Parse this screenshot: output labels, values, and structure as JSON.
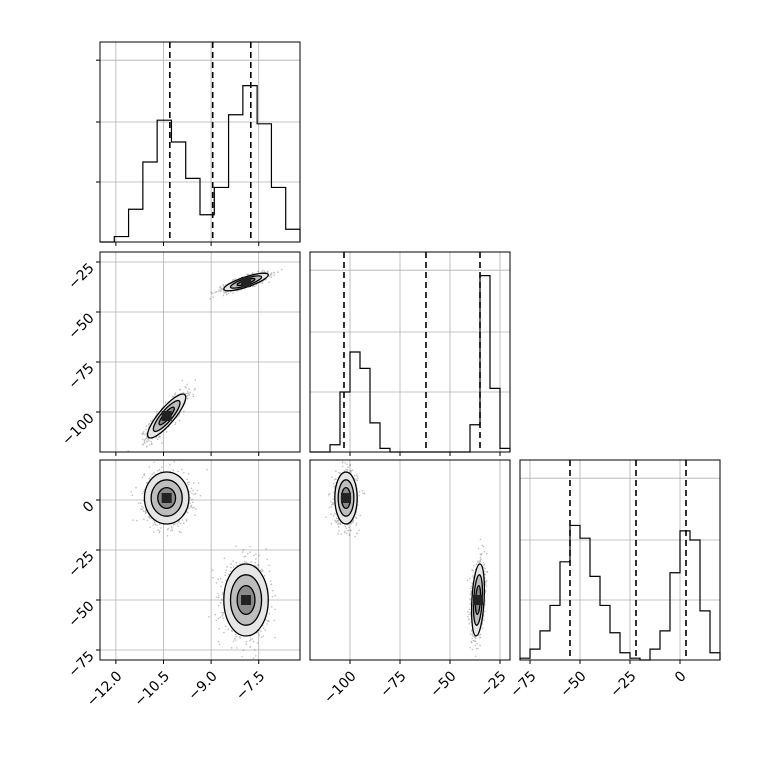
{
  "chart_data": {
    "type": "corner",
    "parameters": [
      {
        "range": [
          -12.5,
          -6.2
        ],
        "ticks": [
          -12.0,
          -10.5,
          -9.0,
          -7.5
        ],
        "tick_labels": [
          "−12.0",
          "−10.5",
          "−9.0",
          "−7.5"
        ],
        "quantiles": [
          -10.3,
          -8.95,
          -7.75
        ],
        "hist": {
          "edges": [
            -12.5,
            -12.05,
            -11.6,
            -11.15,
            -10.7,
            -10.25,
            -9.8,
            -9.35,
            -8.9,
            -8.45,
            -8.0,
            -7.55,
            -7.1,
            -6.65,
            -6.2
          ],
          "density": [
            0.0,
            0.03,
            0.18,
            0.44,
            0.67,
            0.55,
            0.35,
            0.15,
            0.3,
            0.7,
            0.86,
            0.65,
            0.3,
            0.07
          ]
        }
      },
      {
        "range": [
          -120,
          -20
        ],
        "ticks": [
          -100,
          -75,
          -50,
          -25
        ],
        "tick_labels": [
          "−100",
          "−75",
          "−50",
          "−25"
        ],
        "quantiles": [
          -103,
          -62,
          -35
        ],
        "hist": {
          "edges": [
            -120,
            -115,
            -110,
            -105,
            -100,
            -95,
            -90,
            -85,
            -80,
            -75,
            -70,
            -65,
            -60,
            -55,
            -50,
            -45,
            -40,
            -35,
            -30,
            -25,
            -20
          ],
          "density": [
            0.0,
            0.0,
            0.04,
            0.33,
            0.55,
            0.46,
            0.16,
            0.02,
            0.0,
            0.0,
            0.0,
            0.0,
            0.0,
            0.0,
            0.0,
            0.0,
            0.15,
            0.97,
            0.35,
            0.02
          ]
        }
      },
      {
        "range": [
          -80,
          20
        ],
        "ticks": [
          -75,
          -50,
          -25,
          0
        ],
        "tick_labels": [
          "−75",
          "−50",
          "−25",
          "0"
        ],
        "quantiles": [
          -55,
          -22,
          3
        ],
        "hist": {
          "edges": [
            -80,
            -75,
            -70,
            -65,
            -60,
            -55,
            -50,
            -45,
            -40,
            -35,
            -30,
            -25,
            -20,
            -15,
            -10,
            -5,
            0,
            5,
            10,
            15,
            20
          ],
          "density": [
            0.01,
            0.06,
            0.16,
            0.3,
            0.54,
            0.74,
            0.67,
            0.46,
            0.3,
            0.15,
            0.04,
            0.01,
            0.0,
            0.06,
            0.16,
            0.48,
            0.71,
            0.66,
            0.27,
            0.04
          ]
        }
      }
    ],
    "pairs": [
      {
        "row": 1,
        "col": 0,
        "ylim": [
          -120,
          -20
        ],
        "y_ticks": [
          -100,
          -75,
          -50,
          -25
        ],
        "y_tick_labels": [
          "−100",
          "−75",
          "−50",
          "−25"
        ],
        "clusters": [
          {
            "cx": -10.4,
            "cy": -102,
            "sx": 0.3,
            "sy": 5.5,
            "corr": 0.85,
            "weight": 0.5
          },
          {
            "cx": -7.9,
            "cy": -35,
            "sx": 0.35,
            "sy": 2.2,
            "corr": 0.8,
            "weight": 0.5
          }
        ]
      },
      {
        "row": 2,
        "col": 0,
        "ylim": [
          -80,
          20
        ],
        "y_ticks": [
          -75,
          -50,
          -25,
          0
        ],
        "y_tick_labels": [
          "−75",
          "−50",
          "−25",
          "0"
        ],
        "clusters": [
          {
            "cx": -10.4,
            "cy": 1,
            "sx": 0.35,
            "sy": 6.5,
            "corr": 0.0,
            "weight": 0.5
          },
          {
            "cx": -7.9,
            "cy": -50,
            "sx": 0.35,
            "sy": 9,
            "corr": 0.0,
            "weight": 0.5
          }
        ]
      },
      {
        "row": 2,
        "col": 1,
        "ylim": [
          -80,
          20
        ],
        "y_ticks": [],
        "y_tick_labels": [],
        "clusters": [
          {
            "cx": -102,
            "cy": 1,
            "sx": 2.8,
            "sy": 6.5,
            "corr": 0.0,
            "weight": 0.5
          },
          {
            "cx": -36,
            "cy": -50,
            "sx": 1.6,
            "sy": 9,
            "corr": 0.3,
            "weight": 0.5
          }
        ]
      }
    ],
    "contour_levels": [
      0.4,
      0.8,
      1.2
    ],
    "grid": true
  }
}
